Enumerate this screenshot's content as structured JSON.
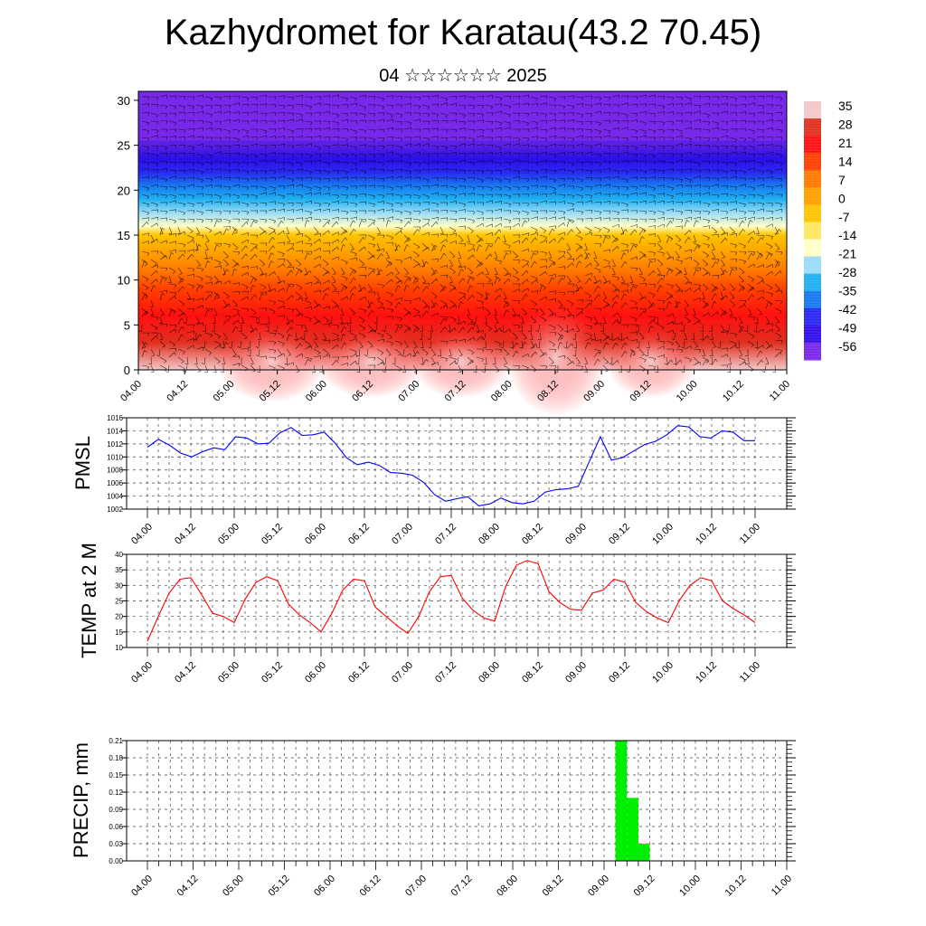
{
  "page": {
    "title": "Kazhydromet for Karatau(43.2 70.45)",
    "subtitle": "04 ☆☆☆☆☆☆ 2025"
  },
  "chart_data": [
    {
      "type": "heatmap",
      "title": "",
      "ylabel": "",
      "ylim": [
        0,
        31
      ],
      "yticks": [
        "0",
        "5",
        "10",
        "15",
        "20",
        "25",
        "30"
      ],
      "xticks": [
        "04.00",
        "04.12",
        "05.00",
        "05.12",
        "06.00",
        "06.12",
        "07.00",
        "07.12",
        "08.00",
        "08.12",
        "09.00",
        "09.12",
        "10.00",
        "10.12",
        "11.00"
      ],
      "colorbar": {
        "labels": [
          "35",
          "28",
          "21",
          "14",
          "7",
          "0",
          "-7",
          "-14",
          "-21",
          "-28",
          "-35",
          "-42",
          "-49",
          "-56"
        ],
        "colors": [
          "#f4c8c8",
          "#e03020",
          "#ff1010",
          "#ff4000",
          "#ff7800",
          "#ffa000",
          "#ffc400",
          "#ffe860",
          "#ffffc8",
          "#9adcf8",
          "#20b0f0",
          "#1878f0",
          "#2828f0",
          "#3010e8",
          "#7828e8"
        ]
      },
      "bands": [
        {
          "h": 0,
          "v": 35
        },
        {
          "h": 3,
          "v": 28
        },
        {
          "h": 6,
          "v": 21
        },
        {
          "h": 9,
          "v": 14
        },
        {
          "h": 11,
          "v": 7
        },
        {
          "h": 13,
          "v": 0
        },
        {
          "h": 15,
          "v": -7
        },
        {
          "h": 16,
          "v": -14
        },
        {
          "h": 17.5,
          "v": -21
        },
        {
          "h": 19,
          "v": -28
        },
        {
          "h": 20.5,
          "v": -35
        },
        {
          "h": 22,
          "v": -42
        },
        {
          "h": 23.5,
          "v": -49
        },
        {
          "h": 25,
          "v": -56
        },
        {
          "h": 31,
          "v": -56
        }
      ],
      "notes": "vertical cross-section with wind barbs"
    },
    {
      "type": "line",
      "ylabel": "PMSL",
      "ylim": [
        1002,
        1016
      ],
      "yticks": [
        "1002",
        "1004",
        "1006",
        "1008",
        "1010",
        "1012",
        "1014",
        "1016"
      ],
      "xticks": [
        "04.00",
        "04.12",
        "05.00",
        "05.12",
        "06.00",
        "06.12",
        "07.00",
        "07.12",
        "08.00",
        "08.12",
        "09.00",
        "09.12",
        "10.00",
        "10.12",
        "11.00"
      ],
      "color": "#0000ff",
      "values": [
        1011.5,
        1012.7,
        1011.8,
        1010.6,
        1010.0,
        1010.8,
        1011.4,
        1011.1,
        1013.1,
        1012.9,
        1012.0,
        1012.1,
        1013.7,
        1014.5,
        1013.3,
        1013.4,
        1013.8,
        1012.1,
        1009.9,
        1008.8,
        1009.2,
        1008.7,
        1007.6,
        1007.5,
        1007.2,
        1006.1,
        1004.2,
        1003.2,
        1003.6,
        1003.9,
        1002.5,
        1002.8,
        1003.7,
        1003.0,
        1002.8,
        1003.2,
        1004.6,
        1005.0,
        1005.1,
        1005.5,
        1009.3,
        1013.1,
        1009.5,
        1009.9,
        1010.9,
        1011.9,
        1012.4,
        1013.4,
        1014.8,
        1014.6,
        1013.1,
        1012.9,
        1014.0,
        1013.8,
        1012.5,
        1012.5
      ]
    },
    {
      "type": "line",
      "ylabel": "TEMP at 2 M",
      "ylim": [
        10,
        40
      ],
      "yticks": [
        "10",
        "15",
        "20",
        "25",
        "30",
        "35",
        "40"
      ],
      "xticks": [
        "04.00",
        "04.12",
        "05.00",
        "05.12",
        "06.00",
        "06.12",
        "07.00",
        "07.12",
        "08.00",
        "08.12",
        "09.00",
        "09.12",
        "10.00",
        "10.12",
        "11.00"
      ],
      "color": "#ff0000",
      "values": [
        12,
        20,
        27.5,
        32,
        32.5,
        27,
        21,
        20,
        18,
        25.5,
        31,
        32.8,
        31.5,
        24,
        20.5,
        18,
        15,
        21,
        28.5,
        32,
        31.5,
        23,
        20,
        17,
        14.5,
        20,
        28,
        32.8,
        33.2,
        26,
        22,
        19.5,
        18.5,
        29.5,
        36.5,
        38,
        37,
        28,
        24.5,
        22.3,
        22,
        27.5,
        28.5,
        32,
        31,
        24.5,
        21.5,
        19.5,
        18,
        25,
        30,
        32.5,
        31.5,
        25,
        22.5,
        20.5,
        18
      ]
    },
    {
      "type": "bar",
      "ylabel": "PRECIP, mm",
      "ylim": [
        0,
        0.21
      ],
      "yticks": [
        "0.00",
        "0.03",
        "0.06",
        "0.09",
        "0.12",
        "0.15",
        "0.18",
        "0.21"
      ],
      "xticks": [
        "04.00",
        "04.12",
        "05.00",
        "05.12",
        "06.00",
        "06.12",
        "07.00",
        "07.12",
        "08.00",
        "08.12",
        "09.00",
        "09.12",
        "10.00",
        "10.12",
        "11.00"
      ],
      "color": "#00ee00",
      "bars": [
        {
          "x": 41,
          "value": 0.21
        },
        {
          "x": 42,
          "value": 0.11
        },
        {
          "x": 43,
          "value": 0.03
        }
      ]
    }
  ]
}
